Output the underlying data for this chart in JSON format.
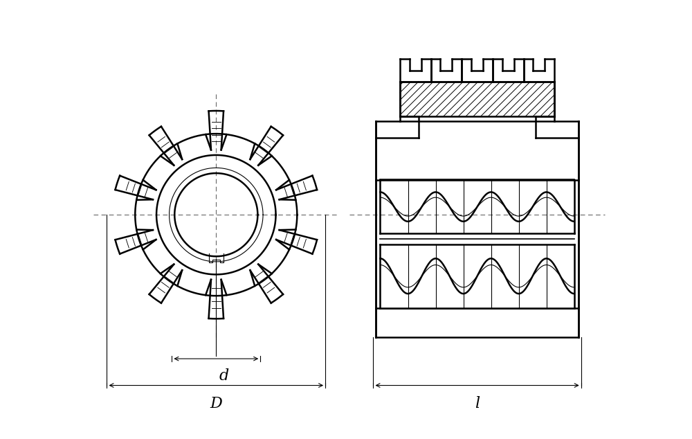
{
  "bg_color": "#ffffff",
  "line_color": "#000000",
  "dash_color": "#666666",
  "fig_width": 10.0,
  "fig_height": 6.34,
  "dpi": 100,
  "label_d": "d",
  "label_D": "D",
  "label_l": "l",
  "lw_main": 1.8,
  "lw_med": 1.2,
  "lw_thin": 0.8,
  "lw_hatch": 0.7
}
